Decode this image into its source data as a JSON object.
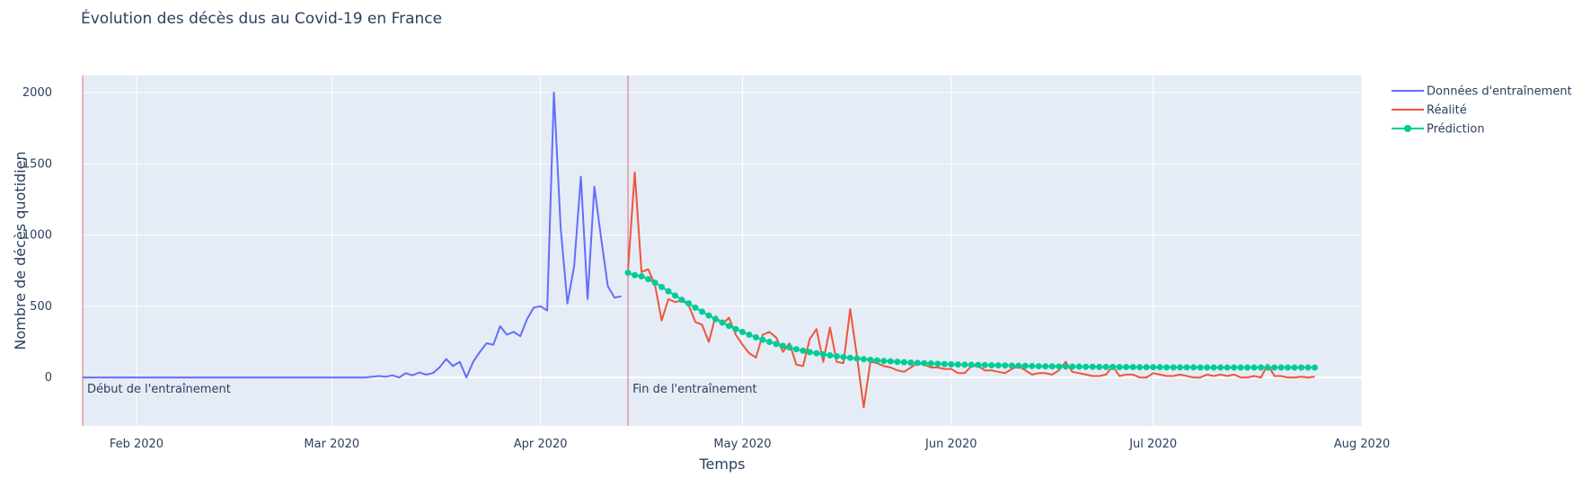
{
  "chart_data": {
    "type": "line",
    "title": "Évolution des décès dus au Covid-19 en France",
    "xlabel": "Temps",
    "ylabel": "Nombre de décès quotidien",
    "xlim": [
      "2020-01-24",
      "2020-08-01"
    ],
    "ylim": [
      -340,
      2120
    ],
    "grid": true,
    "legend_position": "top-right",
    "x_ticks": [
      {
        "date": "2020-02-01",
        "label": "Feb 2020"
      },
      {
        "date": "2020-03-01",
        "label": "Mar 2020"
      },
      {
        "date": "2020-04-01",
        "label": "Apr 2020"
      },
      {
        "date": "2020-05-01",
        "label": "May 2020"
      },
      {
        "date": "2020-06-01",
        "label": "Jun 2020"
      },
      {
        "date": "2020-07-01",
        "label": "Jul 2020"
      },
      {
        "date": "2020-08-01",
        "label": "Aug 2020"
      }
    ],
    "y_ticks": [
      0,
      500,
      1000,
      1500,
      2000
    ],
    "annotations": [
      {
        "date": "2020-01-24",
        "text": "Début de l'entraînement"
      },
      {
        "date": "2020-04-14",
        "text": "Fin de l'entraînement"
      }
    ],
    "series": [
      {
        "name": "Données d'entraînement",
        "color": "#636efa",
        "mode": "lines",
        "start": "2020-01-24",
        "values": [
          0,
          0,
          0,
          0,
          0,
          0,
          0,
          0,
          0,
          0,
          0,
          0,
          0,
          0,
          0,
          0,
          0,
          0,
          0,
          0,
          0,
          0,
          0,
          0,
          0,
          0,
          0,
          0,
          0,
          0,
          0,
          0,
          0,
          0,
          0,
          0,
          0,
          0,
          0,
          0,
          0,
          0,
          0,
          5,
          10,
          5,
          15,
          0,
          30,
          15,
          35,
          20,
          30,
          70,
          130,
          80,
          110,
          0,
          110,
          180,
          240,
          230,
          360,
          300,
          320,
          290,
          410,
          490,
          500,
          470,
          2000,
          1050,
          520,
          780,
          1410,
          550,
          1340,
          980,
          640,
          560,
          570
        ]
      },
      {
        "name": "Réalité",
        "color": "#ef553b",
        "mode": "lines",
        "start": "2020-04-14",
        "values": [
          760,
          1440,
          740,
          760,
          650,
          400,
          550,
          530,
          540,
          510,
          390,
          370,
          250,
          430,
          370,
          420,
          300,
          230,
          170,
          140,
          300,
          320,
          280,
          180,
          240,
          90,
          80,
          270,
          340,
          110,
          350,
          110,
          100,
          480,
          150,
          -210,
          110,
          100,
          80,
          70,
          50,
          40,
          70,
          100,
          90,
          70,
          70,
          60,
          60,
          30,
          30,
          80,
          80,
          50,
          50,
          40,
          30,
          60,
          80,
          50,
          20,
          30,
          30,
          20,
          50,
          110,
          40,
          30,
          20,
          10,
          10,
          20,
          80,
          10,
          20,
          20,
          0,
          0,
          30,
          20,
          10,
          10,
          20,
          10,
          0,
          0,
          20,
          10,
          20,
          10,
          20,
          0,
          0,
          10,
          0,
          90,
          10,
          10,
          0,
          0,
          5,
          0,
          5
        ]
      },
      {
        "name": "Prédiction",
        "color": "#00cc96",
        "mode": "lines+markers",
        "start": "2020-04-14",
        "values": [
          735,
          718,
          710,
          690,
          665,
          635,
          605,
          575,
          545,
          520,
          490,
          462,
          435,
          410,
          385,
          362,
          340,
          320,
          300,
          282,
          265,
          250,
          235,
          222,
          210,
          198,
          188,
          178,
          170,
          162,
          155,
          149,
          143,
          138,
          133,
          128,
          124,
          120,
          116,
          113,
          110,
          107,
          104,
          102,
          100,
          98,
          96,
          94,
          92,
          91,
          90,
          89,
          88,
          87,
          86,
          85,
          84,
          83,
          82,
          81,
          80,
          79,
          78,
          78,
          77,
          77,
          76,
          76,
          75,
          75,
          74,
          74,
          74,
          73,
          73,
          73,
          72,
          72,
          72,
          72,
          71,
          71,
          71,
          71,
          71,
          70,
          70,
          70,
          70,
          70,
          70,
          70,
          70,
          70,
          70,
          70,
          70,
          70,
          70,
          70,
          70,
          70,
          70
        ]
      }
    ]
  }
}
